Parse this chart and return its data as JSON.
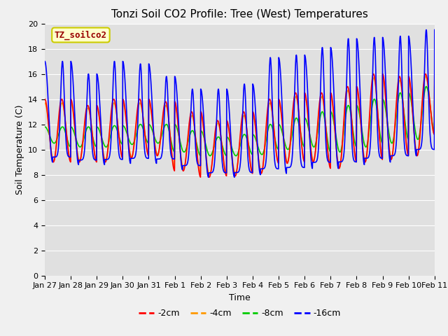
{
  "title": "Tonzi Soil CO2 Profile: Tree (West) Temperatures",
  "xlabel": "Time",
  "ylabel": "Soil Temperature (C)",
  "ylim": [
    0,
    20
  ],
  "legend_label": "TZ_soilco2",
  "series_labels": [
    "-2cm",
    "-4cm",
    "-8cm",
    "-16cm"
  ],
  "series_colors": [
    "#ff0000",
    "#ff9900",
    "#00cc00",
    "#0000ff"
  ],
  "line_width": 1.2,
  "xtick_labels": [
    "Jan 27",
    "Jan 28",
    "Jan 29",
    "Jan 30",
    "Jan 31",
    "Feb 1",
    "Feb 2",
    "Feb 3",
    "Feb 4",
    "Feb 5",
    "Feb 6",
    "Feb 7",
    "Feb 8",
    "Feb 9",
    "Feb 10",
    "Feb 11"
  ],
  "background_color": "#e8e8e8",
  "plot_bg_color": "#e0e0e0",
  "title_fontsize": 11,
  "axis_fontsize": 9,
  "tick_fontsize": 8,
  "legend_box_color": "#ffffcc",
  "legend_box_edge": "#cccc00"
}
